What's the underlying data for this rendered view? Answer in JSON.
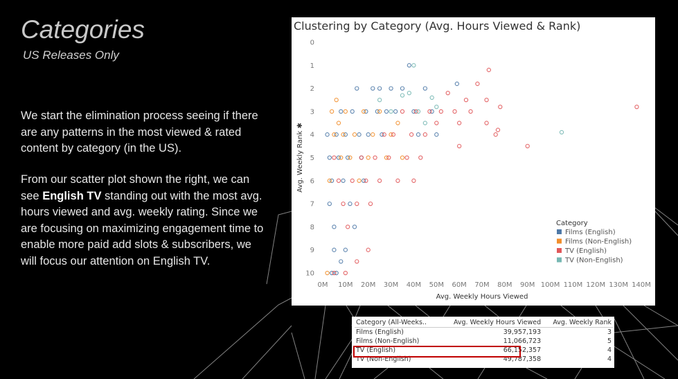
{
  "slide": {
    "title": "Categories",
    "subtitle": "US Releases Only",
    "paragraph1": "We start the elimination process seeing if there are any patterns in the most viewed & rated content by category (in the US).",
    "paragraph2_pre": "From our scatter plot shown the right, we can see ",
    "paragraph2_bold": "English TV",
    "paragraph2_post": " standing out with the most avg. hours viewed and avg. weekly rating. Since we are focusing on maximizing engagement time to enable more paid add slots & subscribers, we will focus our attention on English TV."
  },
  "chart_data": {
    "type": "scatter",
    "title": "Clustering by Category (Avg. Hours Viewed & Rank)",
    "xlabel": "Avg. Weekly Hours Viewed",
    "ylabel": "Avg. Weekly Rank ✱",
    "xlim": [
      0,
      140
    ],
    "ylim": [
      0,
      10
    ],
    "y_reversed": true,
    "x_ticks": [
      "0M",
      "10M",
      "20M",
      "30M",
      "40M",
      "50M",
      "60M",
      "70M",
      "80M",
      "90M",
      "100M",
      "110M",
      "120M",
      "130M",
      "140M"
    ],
    "y_ticks": [
      "0",
      "1",
      "2",
      "3",
      "4",
      "5",
      "6",
      "7",
      "8",
      "9",
      "10"
    ],
    "legend": {
      "title": "Category",
      "position": "right",
      "entries": [
        {
          "label": "Films (English)",
          "color": "#4e79a7"
        },
        {
          "label": "Films (Non-English)",
          "color": "#f28e2b"
        },
        {
          "label": "TV (English)",
          "color": "#e15759"
        },
        {
          "label": "TV (Non-English)",
          "color": "#76b7b2"
        }
      ]
    },
    "series": [
      {
        "name": "Films (English)",
        "color": "#4e79a7",
        "points": [
          [
            2,
            4
          ],
          [
            3,
            5
          ],
          [
            4,
            6
          ],
          [
            3,
            7
          ],
          [
            5,
            8
          ],
          [
            6,
            4
          ],
          [
            7,
            5
          ],
          [
            8,
            3
          ],
          [
            9,
            6
          ],
          [
            10,
            4
          ],
          [
            11,
            5
          ],
          [
            12,
            7
          ],
          [
            13,
            3
          ],
          [
            14,
            8
          ],
          [
            15,
            2
          ],
          [
            16,
            4
          ],
          [
            17,
            5
          ],
          [
            18,
            6
          ],
          [
            19,
            3
          ],
          [
            20,
            4
          ],
          [
            22,
            2
          ],
          [
            24,
            3
          ],
          [
            25,
            2
          ],
          [
            26,
            4
          ],
          [
            28,
            3
          ],
          [
            30,
            2
          ],
          [
            32,
            3
          ],
          [
            35,
            2
          ],
          [
            38,
            1
          ],
          [
            40,
            3
          ],
          [
            42,
            4
          ],
          [
            45,
            2
          ],
          [
            48,
            3
          ],
          [
            50,
            4
          ],
          [
            59,
            1.8
          ],
          [
            5,
            9
          ],
          [
            6,
            10
          ],
          [
            8,
            9.5
          ],
          [
            10,
            9
          ],
          [
            4,
            10
          ]
        ]
      },
      {
        "name": "Films (Non-English)",
        "color": "#f28e2b",
        "points": [
          [
            4,
            3
          ],
          [
            5,
            4
          ],
          [
            6,
            2.5
          ],
          [
            7,
            3.5
          ],
          [
            8,
            5
          ],
          [
            9,
            4
          ],
          [
            10,
            3
          ],
          [
            12,
            5
          ],
          [
            14,
            4
          ],
          [
            16,
            6
          ],
          [
            18,
            3
          ],
          [
            20,
            5
          ],
          [
            22,
            4
          ],
          [
            25,
            3
          ],
          [
            28,
            5
          ],
          [
            30,
            4
          ],
          [
            33,
            3.5
          ],
          [
            35,
            5
          ],
          [
            3,
            6
          ],
          [
            2,
            10
          ]
        ]
      },
      {
        "name": "TV (English)",
        "color": "#e15759",
        "points": [
          [
            5,
            5
          ],
          [
            7,
            6
          ],
          [
            9,
            7
          ],
          [
            11,
            8
          ],
          [
            13,
            6
          ],
          [
            15,
            7
          ],
          [
            17,
            5
          ],
          [
            19,
            6
          ],
          [
            21,
            7
          ],
          [
            23,
            5
          ],
          [
            25,
            6
          ],
          [
            27,
            4
          ],
          [
            29,
            5
          ],
          [
            31,
            4
          ],
          [
            33,
            6
          ],
          [
            35,
            3
          ],
          [
            37,
            5
          ],
          [
            39,
            4
          ],
          [
            41,
            3
          ],
          [
            43,
            5
          ],
          [
            45,
            4
          ],
          [
            47,
            3
          ],
          [
            50,
            3.5
          ],
          [
            52,
            3
          ],
          [
            55,
            2.2
          ],
          [
            58,
            3
          ],
          [
            60,
            3.5
          ],
          [
            63,
            2.5
          ],
          [
            65,
            3
          ],
          [
            68,
            1.8
          ],
          [
            72,
            3.5
          ],
          [
            72,
            2.5
          ],
          [
            73,
            1.2
          ],
          [
            76,
            4
          ],
          [
            77,
            3.8
          ],
          [
            78,
            2.8
          ],
          [
            90,
            4.5
          ],
          [
            138,
            2.8
          ],
          [
            60,
            4.5
          ],
          [
            40,
            6
          ],
          [
            5,
            10
          ],
          [
            10,
            10
          ],
          [
            15,
            9.5
          ],
          [
            20,
            9
          ]
        ]
      },
      {
        "name": "TV (Non-English)",
        "color": "#76b7b2",
        "points": [
          [
            40,
            1
          ],
          [
            35,
            2.3
          ],
          [
            38,
            2.2
          ],
          [
            42,
            3
          ],
          [
            48,
            2.4
          ],
          [
            45,
            3.5
          ],
          [
            30,
            3
          ],
          [
            105,
            3.9
          ],
          [
            25,
            2.5
          ],
          [
            50,
            2.8
          ]
        ]
      }
    ]
  },
  "table": {
    "headers": [
      "Category (All-Weeks..",
      "Avg. Weekly Hours Viewed",
      "Avg. Weekly Rank"
    ],
    "rows": [
      {
        "category": "Films (English)",
        "hours": "39,957,193",
        "rank": "3"
      },
      {
        "category": "Films (Non-English)",
        "hours": "11,066,723",
        "rank": "5"
      },
      {
        "category": "TV (English)",
        "hours": "66,152,357",
        "rank": "4"
      },
      {
        "category": "TV (Non-English)",
        "hours": "49,787,358",
        "rank": "4"
      }
    ],
    "highlight_color": "#c00000"
  }
}
